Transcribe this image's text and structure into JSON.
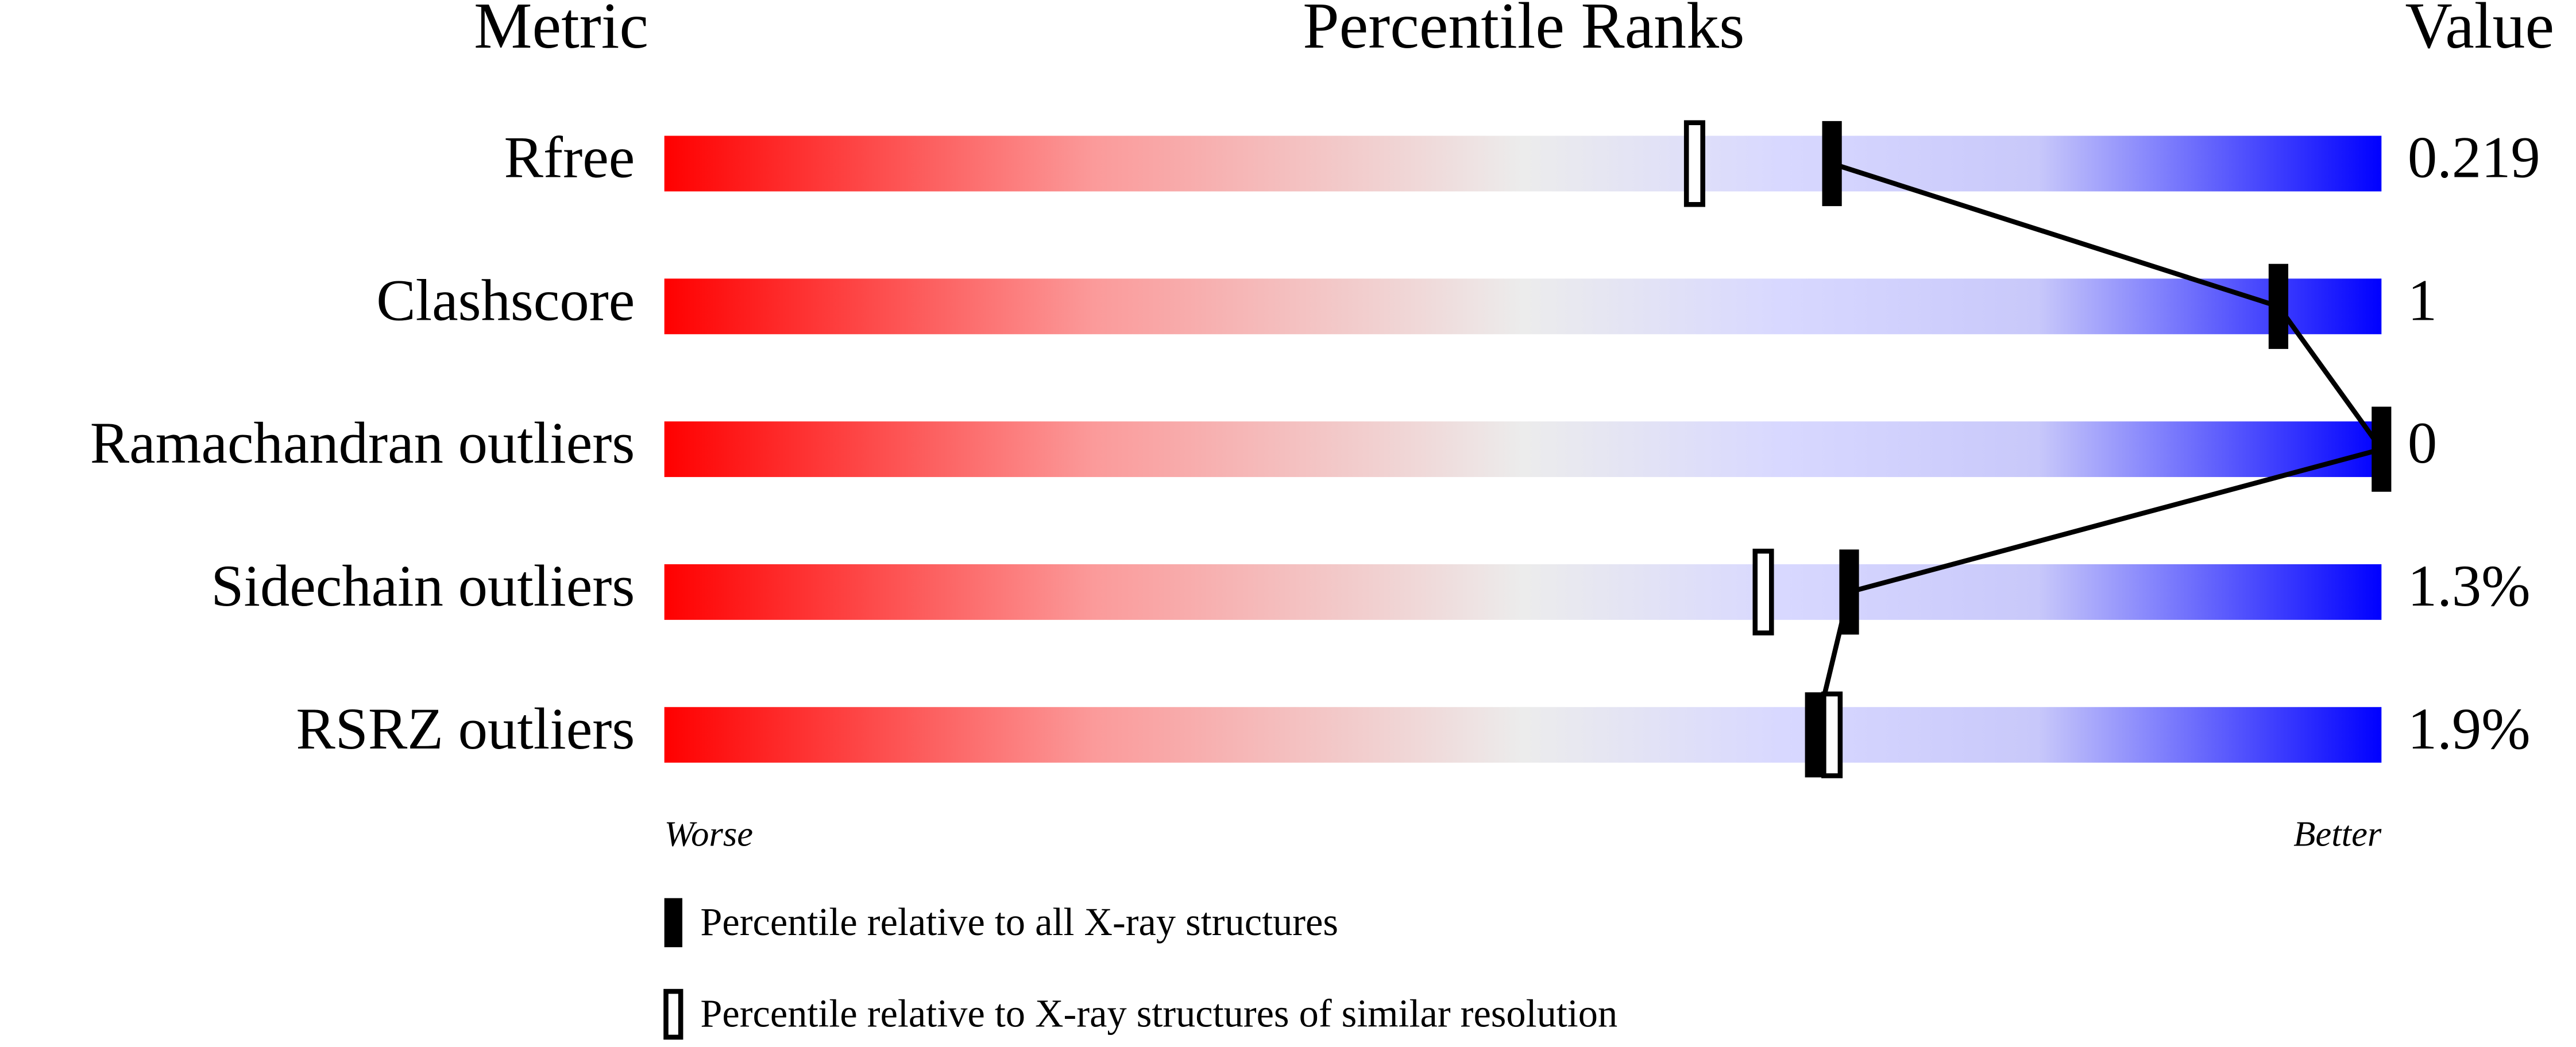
{
  "chart_data": {
    "type": "percentile",
    "headers": {
      "metric": "Metric",
      "ranks": "Percentile Ranks",
      "value": "Value"
    },
    "categories": [
      "Rfree",
      "Clashscore",
      "Ramachandran outliers",
      "Sidechain outliers",
      "RSRZ outliers"
    ],
    "metric_values": [
      "0.219",
      "1",
      "0",
      "1.3%",
      "1.9%"
    ],
    "series": [
      {
        "name": "Percentile relative to all X-ray structures",
        "style": "filled",
        "color": "#000000",
        "values": [
          68,
          94,
          100,
          69,
          67
        ]
      },
      {
        "name": "Percentile relative to X-ray structures of similar resolution",
        "style": "open",
        "color": "#000000",
        "values": [
          60,
          null,
          null,
          64,
          68
        ]
      }
    ],
    "xlim": [
      0,
      100
    ],
    "worse_label": "Worse",
    "better_label": "Better",
    "connect_series": 0
  }
}
